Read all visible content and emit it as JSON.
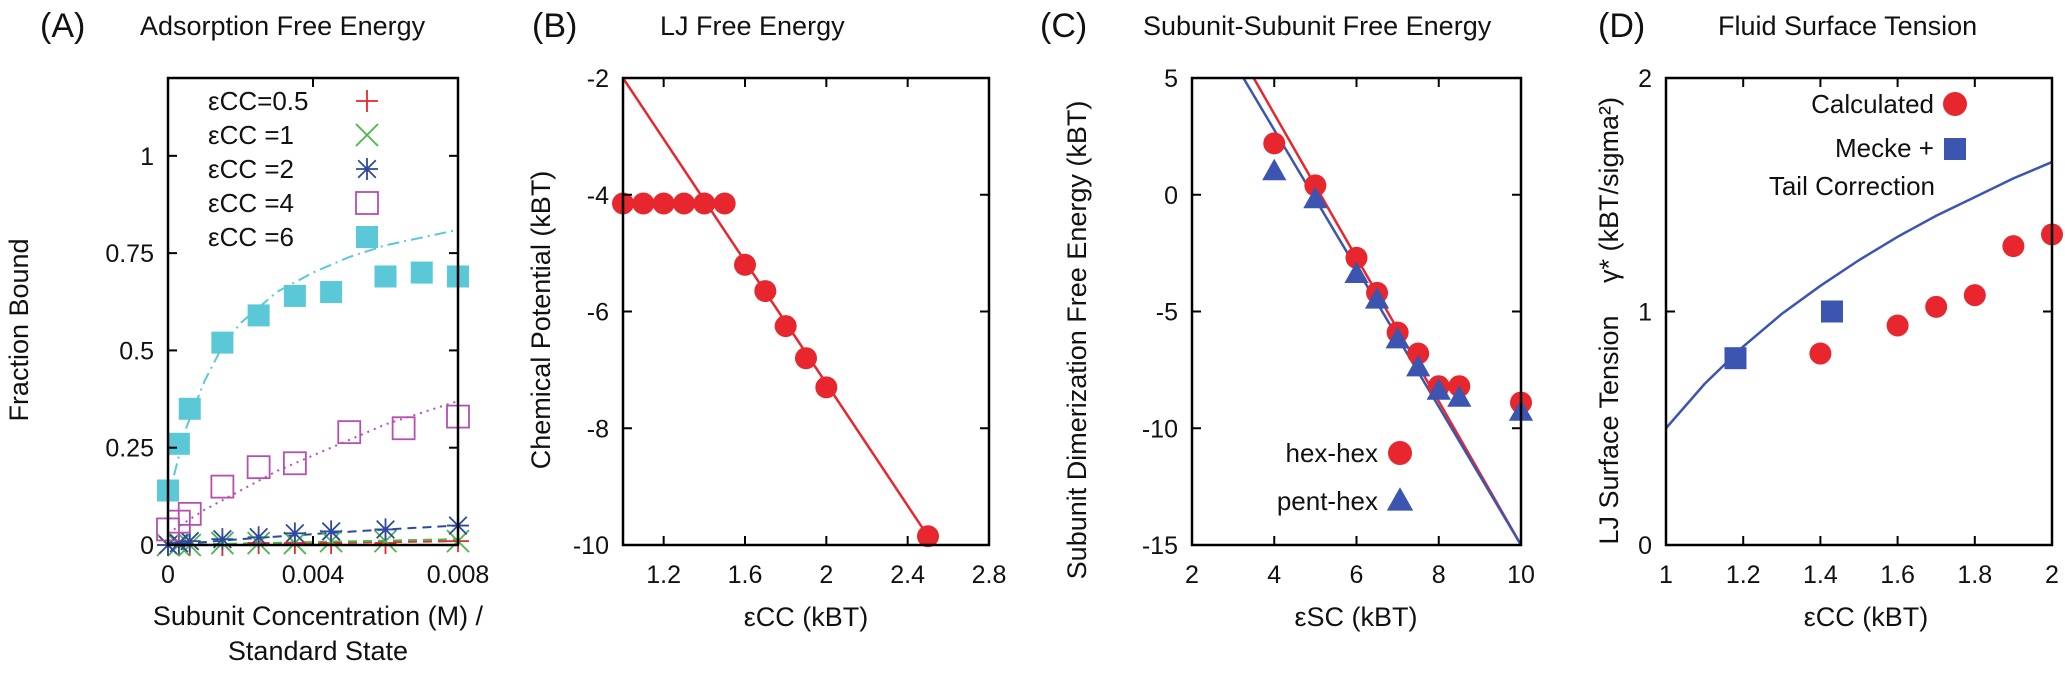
{
  "colors": {
    "red": "#e8262d",
    "green": "#4ab84a",
    "navy": "#2e4a9e",
    "magenta": "#b54fb0",
    "cyan": "#5bc8d8",
    "blue": "#3b55b0"
  },
  "chart_data": [
    {
      "panel": "(A)",
      "type": "scatter",
      "title": "Adsorption Free Energy",
      "xlabel": "Subunit Concentration (M) /",
      "xlabel2": "Standard State",
      "ylabel": "Fraction Bound",
      "xlim": [
        0,
        0.008
      ],
      "ylim": [
        0,
        1.2
      ],
      "xticks": [
        0,
        0.004,
        0.008
      ],
      "xticklabels": [
        "0",
        "0.004",
        "0.008"
      ],
      "yticks": [
        0,
        0.25,
        0.5,
        0.75,
        1
      ],
      "yticklabels": [
        "0",
        "0.25",
        "0.5",
        "0.75",
        "1"
      ],
      "series": [
        {
          "name": "εCC=0.5",
          "legend_label": "εCC=0.5",
          "marker": "plus",
          "color": "red",
          "x": [
            0,
            0.0003,
            0.0006,
            0.0015,
            0.0025,
            0.0035,
            0.0045,
            0.006,
            0.008
          ],
          "y": [
            0.0,
            0.0,
            0.0,
            0.0,
            0.005,
            0.005,
            0.005,
            0.005,
            0.01
          ],
          "fit": {
            "style": "dashed",
            "x": [
              0,
              0.008
            ],
            "y": [
              0.0,
              0.01
            ]
          }
        },
        {
          "name": "εCC=1",
          "legend_label": "εCC  =1",
          "marker": "x",
          "color": "green",
          "x": [
            0,
            0.0003,
            0.0006,
            0.0015,
            0.0025,
            0.0035,
            0.0045,
            0.006,
            0.008
          ],
          "y": [
            0.0,
            0.0,
            0.0,
            0.005,
            0.005,
            0.005,
            0.01,
            0.01,
            0.01
          ],
          "fit": {
            "style": "dashed",
            "x": [
              0,
              0.008
            ],
            "y": [
              0.0,
              0.015
            ]
          }
        },
        {
          "name": "εCC=2",
          "legend_label": "εCC  =2",
          "marker": "star",
          "color": "navy",
          "x": [
            0,
            0.0003,
            0.0006,
            0.0015,
            0.0025,
            0.0035,
            0.0045,
            0.006,
            0.008
          ],
          "y": [
            0.0,
            0.005,
            0.01,
            0.015,
            0.02,
            0.03,
            0.035,
            0.04,
            0.05
          ],
          "fit": {
            "style": "dashed",
            "x": [
              0,
              0.002,
              0.004,
              0.006,
              0.008
            ],
            "y": [
              0.0,
              0.015,
              0.028,
              0.04,
              0.05
            ]
          }
        },
        {
          "name": "εCC=4",
          "legend_label": "εCC  =4",
          "marker": "square-open",
          "color": "magenta",
          "x": [
            0,
            0.0003,
            0.0006,
            0.0015,
            0.0025,
            0.0035,
            0.005,
            0.0065,
            0.008
          ],
          "y": [
            0.04,
            0.06,
            0.08,
            0.15,
            0.2,
            0.21,
            0.29,
            0.3,
            0.33
          ],
          "fit": {
            "style": "dotted",
            "x": [
              0,
              0.001,
              0.002,
              0.003,
              0.004,
              0.005,
              0.006,
              0.007,
              0.008
            ],
            "y": [
              0.03,
              0.09,
              0.14,
              0.19,
              0.23,
              0.27,
              0.31,
              0.34,
              0.37
            ]
          }
        },
        {
          "name": "εCC=6",
          "legend_label": "εCC  =6",
          "marker": "square-filled",
          "color": "cyan",
          "x": [
            0,
            0.0003,
            0.0006,
            0.0015,
            0.0025,
            0.0035,
            0.0045,
            0.006,
            0.007,
            0.008
          ],
          "y": [
            0.14,
            0.26,
            0.35,
            0.52,
            0.59,
            0.64,
            0.65,
            0.69,
            0.7,
            0.69
          ],
          "fit": {
            "style": "dashdot",
            "x": [
              0,
              0.0005,
              0.001,
              0.0015,
              0.002,
              0.003,
              0.004,
              0.005,
              0.006,
              0.007,
              0.008
            ],
            "y": [
              0.12,
              0.3,
              0.42,
              0.51,
              0.57,
              0.65,
              0.7,
              0.74,
              0.77,
              0.79,
              0.81
            ]
          }
        }
      ]
    },
    {
      "panel": "(B)",
      "type": "scatter",
      "title": "LJ Free Energy",
      "xlabel": "εCC (kBT)",
      "ylabel": "Chemical Potential (kBT)",
      "xlim": [
        1,
        2.8
      ],
      "ylim": [
        -10,
        -2
      ],
      "xticks": [
        1.2,
        1.6,
        2,
        2.4,
        2.8
      ],
      "xticklabels": [
        "1.2",
        "1.6",
        "2",
        "2.4",
        "2.8"
      ],
      "yticks": [
        -10,
        -8,
        -6,
        -4,
        -2
      ],
      "yticklabels": [
        "-10",
        "-8",
        "-6",
        "-4",
        "-2"
      ],
      "series": [
        {
          "name": "data",
          "marker": "circle",
          "color": "red",
          "x": [
            1.0,
            1.1,
            1.2,
            1.3,
            1.4,
            1.5,
            1.6,
            1.7,
            1.8,
            1.9,
            2.0,
            2.5
          ],
          "y": [
            -4.15,
            -4.15,
            -4.15,
            -4.15,
            -4.15,
            -4.15,
            -5.2,
            -5.65,
            -6.25,
            -6.8,
            -7.3,
            -9.85
          ]
        },
        {
          "name": "fit",
          "marker": "line",
          "color": "red",
          "x": [
            1.0,
            2.5
          ],
          "y": [
            -2.0,
            -9.85
          ]
        }
      ]
    },
    {
      "panel": "(C)",
      "type": "scatter",
      "title": "Subunit-Subunit Free Energy",
      "xlabel": "εSC   (kBT)",
      "ylabel": "Subunit Dimerization Free Energy (kBT)",
      "xlim": [
        2,
        10
      ],
      "ylim": [
        -15,
        5
      ],
      "xticks": [
        2,
        4,
        6,
        8,
        10
      ],
      "xticklabels": [
        "2",
        "4",
        "6",
        "8",
        "10"
      ],
      "yticks": [
        -15,
        -10,
        -5,
        0,
        5
      ],
      "yticklabels": [
        "-15",
        "-10",
        "-5",
        "0",
        "5"
      ],
      "legend": [
        "hex-hex",
        "pent-hex"
      ],
      "series": [
        {
          "name": "hex-hex",
          "marker": "circle",
          "color": "red",
          "x": [
            4,
            5,
            6,
            6.5,
            7,
            7.5,
            8,
            8.5,
            10
          ],
          "y": [
            2.2,
            0.4,
            -2.7,
            -4.2,
            -5.9,
            -6.8,
            -8.2,
            -8.2,
            -8.9
          ]
        },
        {
          "name": "pent-hex",
          "marker": "triangle",
          "color": "blue",
          "x": [
            4,
            5,
            6,
            6.5,
            7,
            7.5,
            8,
            8.5,
            10
          ],
          "y": [
            1.0,
            -0.2,
            -3.4,
            -4.5,
            -6.2,
            -7.4,
            -8.4,
            -8.7,
            -9.3
          ]
        },
        {
          "name": "hex-hex fit",
          "marker": "line",
          "color": "red",
          "x": [
            3.5,
            10
          ],
          "y": [
            5,
            -15
          ]
        },
        {
          "name": "pent-hex fit",
          "marker": "line",
          "color": "blue",
          "x": [
            3.25,
            10
          ],
          "y": [
            5,
            -15
          ]
        }
      ]
    },
    {
      "panel": "(D)",
      "type": "scatter",
      "title": "Fluid Surface Tension",
      "xlabel": "εCC (kBT)",
      "ylabel": "LJ Surface Tension",
      "ylabel2": "γ* (kBT/sigma²)",
      "xlim": [
        1,
        2
      ],
      "ylim": [
        0,
        2
      ],
      "xticks": [
        1,
        1.2,
        1.4,
        1.6,
        1.8,
        2
      ],
      "xticklabels": [
        "1",
        "1.2",
        "1.4",
        "1.6",
        "1.8",
        "2"
      ],
      "yticks": [
        0,
        1,
        2
      ],
      "yticklabels": [
        "0",
        "1",
        "2"
      ],
      "legend": [
        "Calculated",
        "Mecke +",
        "Tail Correction"
      ],
      "series": [
        {
          "name": "Calculated",
          "marker": "circle",
          "color": "red",
          "x": [
            1.4,
            1.6,
            1.7,
            1.8,
            1.9,
            2.0
          ],
          "y": [
            0.82,
            0.94,
            1.02,
            1.07,
            1.28,
            1.33
          ]
        },
        {
          "name": "Mecke + Tail Correction",
          "marker": "square-filled",
          "color": "blue",
          "x": [
            1.18,
            1.43
          ],
          "y": [
            0.8,
            1.0
          ]
        },
        {
          "name": "curve",
          "marker": "line",
          "color": "blue",
          "x": [
            1.0,
            1.1,
            1.2,
            1.3,
            1.4,
            1.5,
            1.6,
            1.7,
            1.8,
            1.9,
            2.0
          ],
          "y": [
            0.5,
            0.69,
            0.85,
            0.99,
            1.11,
            1.22,
            1.32,
            1.41,
            1.49,
            1.57,
            1.64
          ]
        }
      ]
    }
  ]
}
